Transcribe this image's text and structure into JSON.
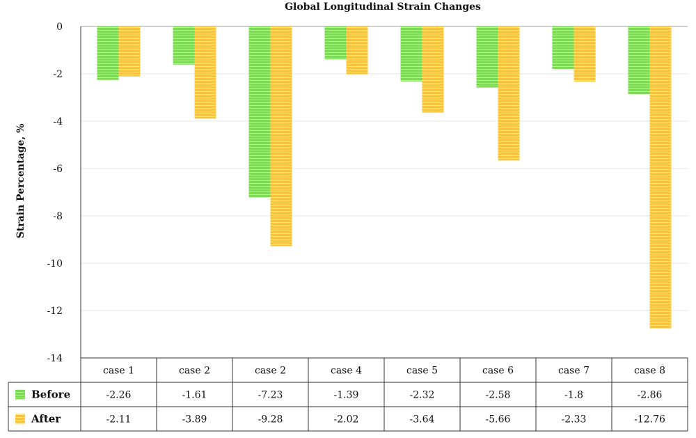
{
  "chart_data": {
    "type": "bar",
    "title": "Global Longitudinal Strain Changes",
    "xlabel": "",
    "ylabel": "Strain Percentage, %",
    "categories": [
      "case 1",
      "case 2",
      "case 2",
      "case 4",
      "case 5",
      "case 6",
      "case 7",
      "case 8"
    ],
    "series": [
      {
        "name": "Before",
        "color": "#7ED957",
        "values": [
          -2.26,
          -1.61,
          -7.23,
          -1.39,
          -2.32,
          -2.58,
          -1.8,
          -2.86
        ],
        "labels": [
          "-2.26",
          "-1.61",
          "-7.23",
          "-1.39",
          "-2.32",
          "-2.58",
          "-1.8",
          "-2.86"
        ]
      },
      {
        "name": "After",
        "color": "#F8C440",
        "values": [
          -2.11,
          -3.89,
          -9.28,
          -2.02,
          -3.64,
          -5.66,
          -2.33,
          -12.76
        ],
        "labels": [
          "-2.11",
          "-3.89",
          "-9.28",
          "-2.02",
          "-3.64",
          "-5.66",
          "-2.33",
          "-12.76"
        ]
      }
    ],
    "ylim": [
      -14,
      0
    ],
    "yticks": [
      "0",
      "-2",
      "-4",
      "-6",
      "-8",
      "-10",
      "-12",
      "-14"
    ],
    "grid": true,
    "legend": "data-table-left"
  }
}
